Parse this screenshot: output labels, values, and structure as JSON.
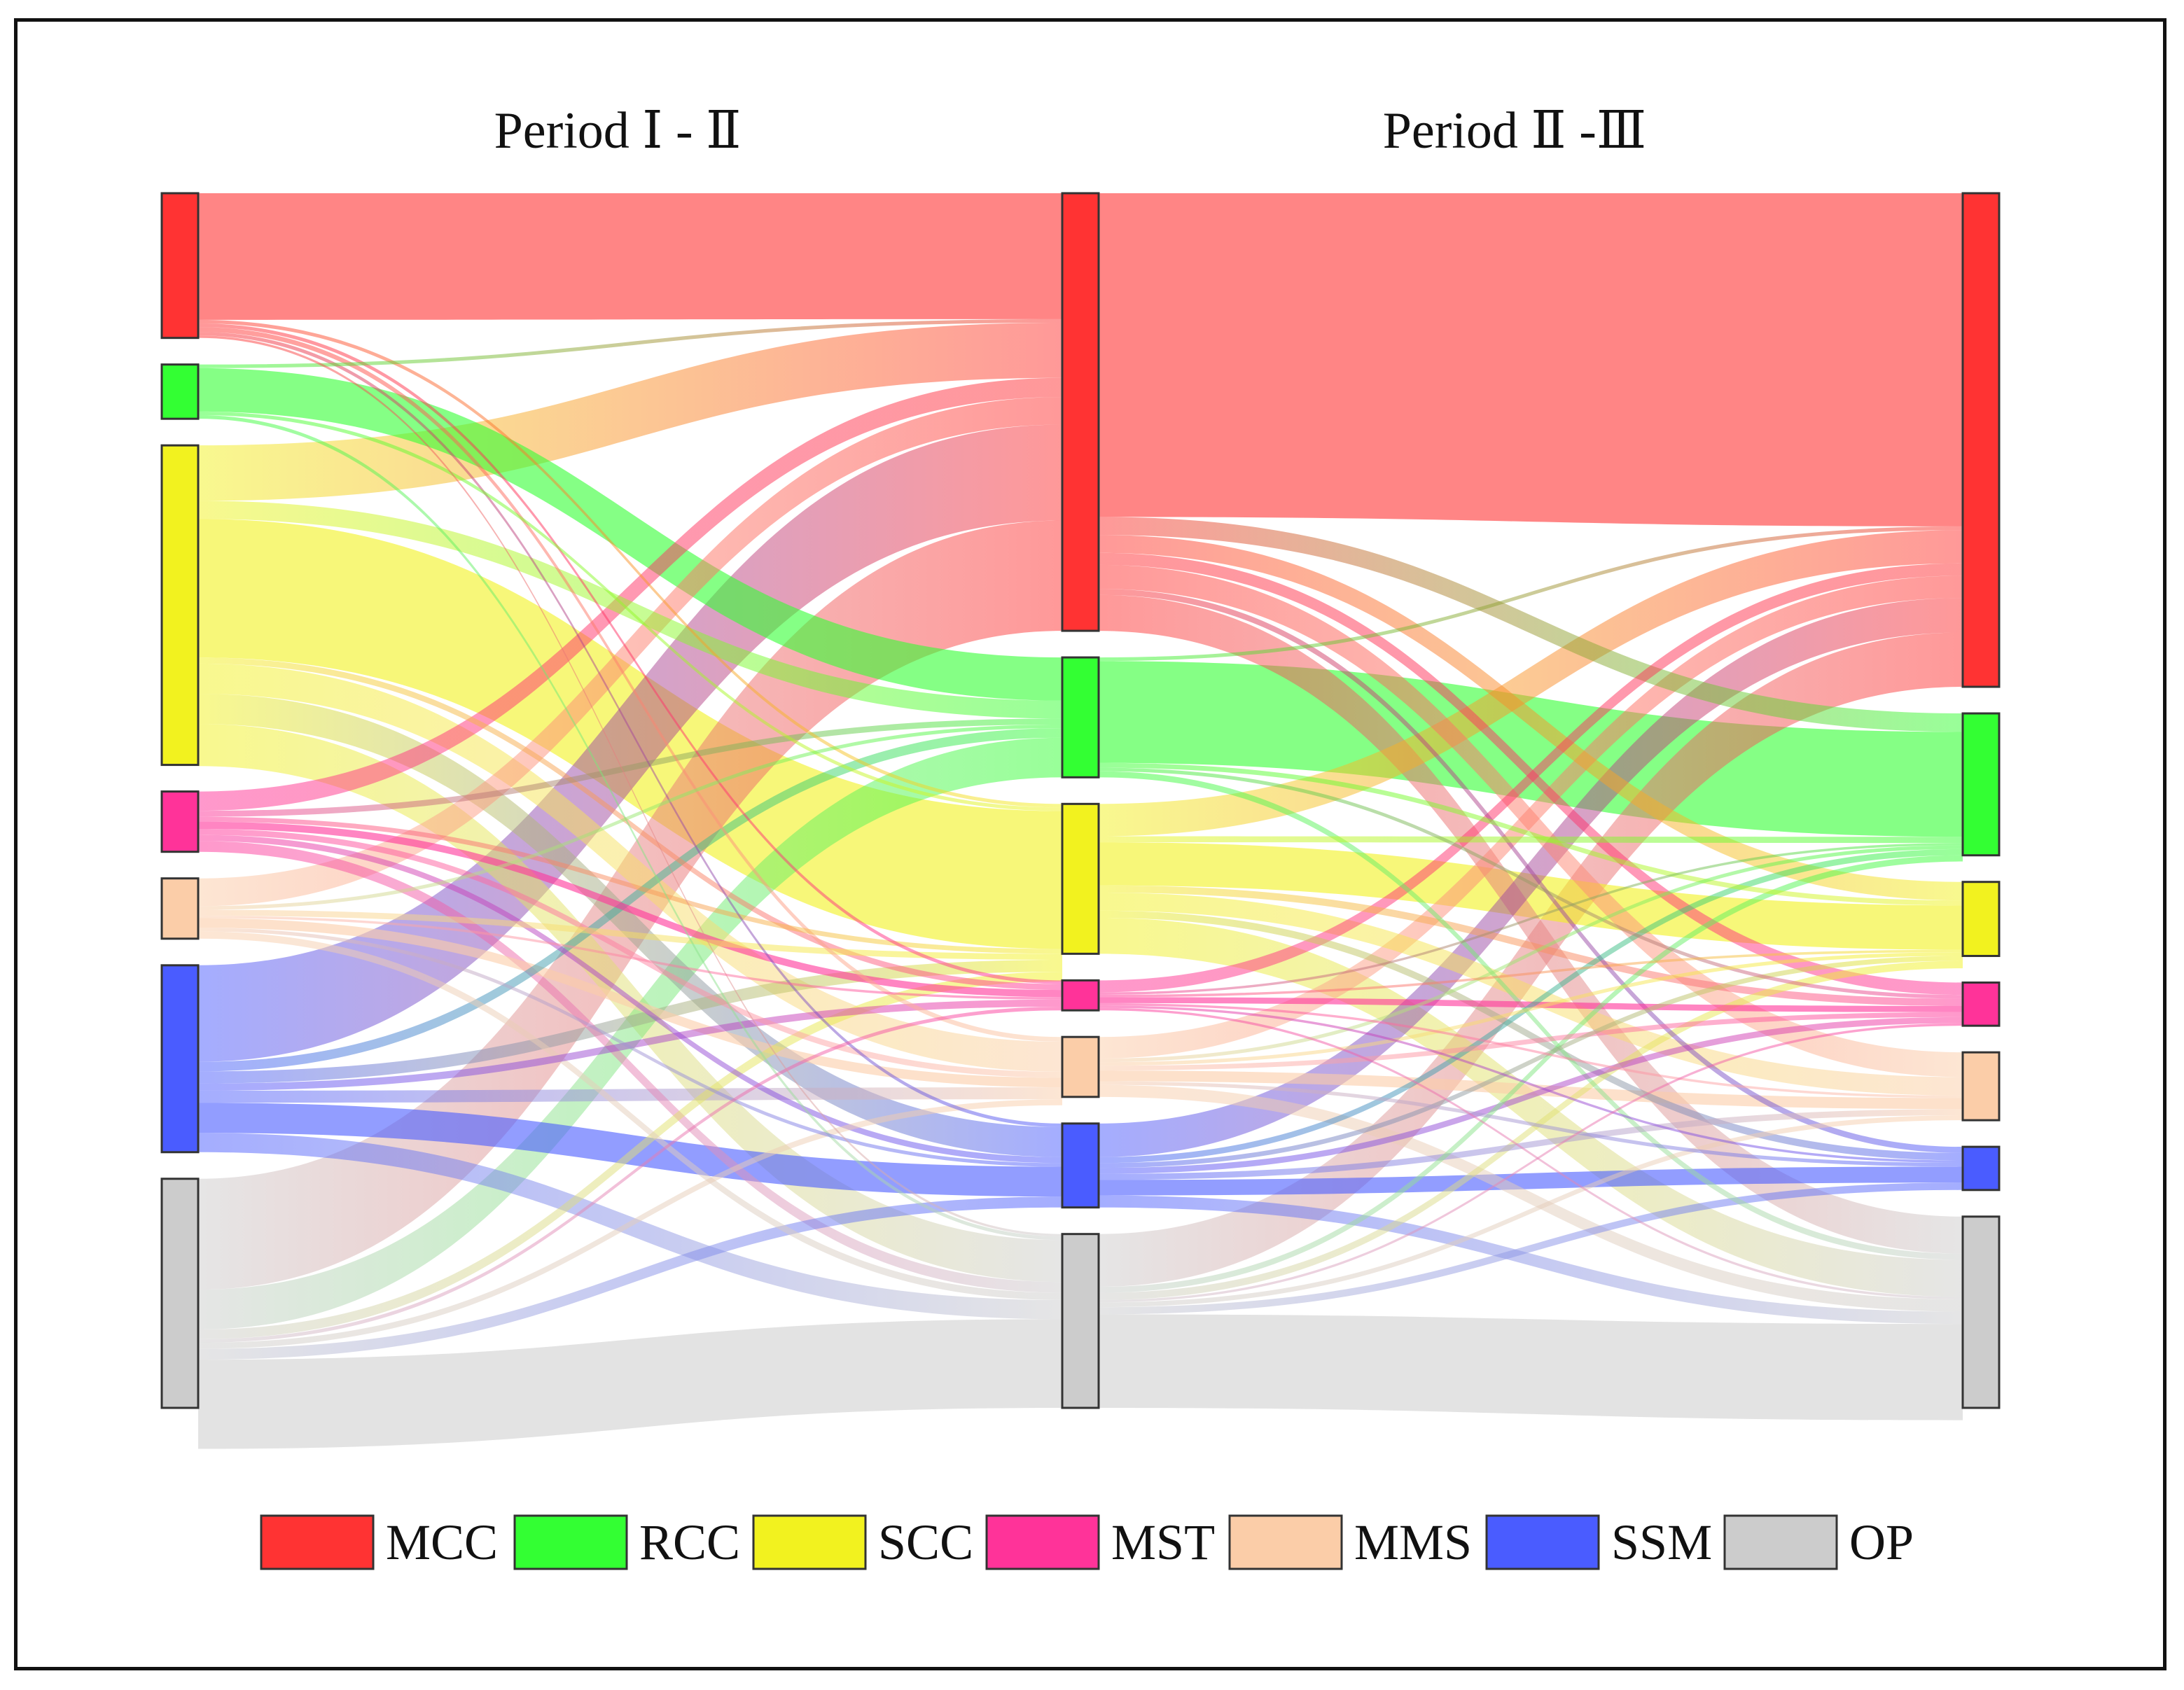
{
  "chart_data": {
    "type": "sankey",
    "unit": "relative flow share (%)",
    "periods": [
      "Period Ⅰ - Ⅱ",
      "Period Ⅱ -Ⅲ"
    ],
    "categories": [
      "MCC",
      "RCC",
      "SCC",
      "MST",
      "MMS",
      "SSM",
      "OP"
    ],
    "colors": {
      "MCC": "#ff3333",
      "RCC": "#33ff33",
      "SCC": "#f2f21f",
      "MST": "#ff3399",
      "MMS": "#fbcda8",
      "SSM": "#4a5cff",
      "OP": "#cccccc"
    },
    "stages": [
      {
        "stage": "Ⅰ",
        "totals": {
          "MCC": 12.0,
          "RCC": 4.5,
          "SCC": 26.5,
          "MST": 5.0,
          "MMS": 5.0,
          "SSM": 15.5,
          "OP": 19.0
        }
      },
      {
        "stage": "Ⅱ",
        "totals": {
          "MCC": 36.5,
          "RCC": 10.0,
          "SCC": 12.5,
          "MST": 2.5,
          "MMS": 5.0,
          "SSM": 7.0,
          "OP": 14.5
        }
      },
      {
        "stage": "Ⅲ",
        "totals": {
          "MCC": 40.0,
          "RCC": 11.5,
          "SCC": 6.0,
          "MST": 3.5,
          "MMS": 5.5,
          "SSM": 3.5,
          "OP": 15.5
        }
      }
    ],
    "flows_I_II": [
      [
        "MCC",
        "MCC",
        10.5
      ],
      [
        "MCC",
        "SCC",
        0.3
      ],
      [
        "MCC",
        "MST",
        0.3
      ],
      [
        "MCC",
        "MMS",
        0.4
      ],
      [
        "MCC",
        "SSM",
        0.3
      ],
      [
        "MCC",
        "OP",
        0.2
      ],
      [
        "RCC",
        "MCC",
        0.3
      ],
      [
        "RCC",
        "RCC",
        3.6
      ],
      [
        "RCC",
        "SCC",
        0.3
      ],
      [
        "RCC",
        "OP",
        0.3
      ],
      [
        "SCC",
        "MCC",
        4.6
      ],
      [
        "SCC",
        "RCC",
        1.5
      ],
      [
        "SCC",
        "SCC",
        11.5
      ],
      [
        "SCC",
        "MST",
        0.5
      ],
      [
        "SCC",
        "MMS",
        2.5
      ],
      [
        "SCC",
        "SSM",
        2.5
      ],
      [
        "SCC",
        "OP",
        3.5
      ],
      [
        "MST",
        "MCC",
        1.6
      ],
      [
        "MST",
        "RCC",
        0.5
      ],
      [
        "MST",
        "SCC",
        0.4
      ],
      [
        "MST",
        "MST",
        0.6
      ],
      [
        "MST",
        "MMS",
        0.5
      ],
      [
        "MST",
        "SSM",
        0.5
      ],
      [
        "MST",
        "OP",
        0.9
      ],
      [
        "MMS",
        "MCC",
        2.3
      ],
      [
        "MMS",
        "RCC",
        0.3
      ],
      [
        "MMS",
        "SCC",
        0.5
      ],
      [
        "MMS",
        "MST",
        0.2
      ],
      [
        "MMS",
        "MMS",
        0.8
      ],
      [
        "MMS",
        "SSM",
        0.3
      ],
      [
        "MMS",
        "OP",
        0.6
      ],
      [
        "SSM",
        "MCC",
        8.0
      ],
      [
        "SSM",
        "RCC",
        0.8
      ],
      [
        "SSM",
        "SCC",
        1.0
      ],
      [
        "SSM",
        "MST",
        0.6
      ],
      [
        "SSM",
        "MMS",
        1.0
      ],
      [
        "SSM",
        "SSM",
        2.5
      ],
      [
        "SSM",
        "OP",
        1.6
      ],
      [
        "OP",
        "MCC",
        9.2
      ],
      [
        "OP",
        "RCC",
        3.3
      ],
      [
        "OP",
        "SCC",
        0.8
      ],
      [
        "OP",
        "MST",
        0.3
      ],
      [
        "OP",
        "MMS",
        0.5
      ],
      [
        "OP",
        "SSM",
        0.9
      ],
      [
        "OP",
        "OP",
        7.4
      ]
    ],
    "flows_II_III": [
      [
        "MCC",
        "MCC",
        27.0
      ],
      [
        "MCC",
        "RCC",
        1.5
      ],
      [
        "MCC",
        "SCC",
        1.5
      ],
      [
        "MCC",
        "MST",
        1.0
      ],
      [
        "MCC",
        "MMS",
        2.0
      ],
      [
        "MCC",
        "SSM",
        0.5
      ],
      [
        "MCC",
        "OP",
        3.0
      ],
      [
        "RCC",
        "MCC",
        0.3
      ],
      [
        "RCC",
        "RCC",
        8.5
      ],
      [
        "RCC",
        "SCC",
        0.4
      ],
      [
        "RCC",
        "MST",
        0.3
      ],
      [
        "RCC",
        "OP",
        0.5
      ],
      [
        "SCC",
        "MCC",
        2.7
      ],
      [
        "SCC",
        "RCC",
        0.5
      ],
      [
        "SCC",
        "SCC",
        3.6
      ],
      [
        "SCC",
        "MST",
        0.6
      ],
      [
        "SCC",
        "MMS",
        1.5
      ],
      [
        "SCC",
        "SSM",
        0.6
      ],
      [
        "SCC",
        "OP",
        3.0
      ],
      [
        "MST",
        "MCC",
        1.0
      ],
      [
        "MST",
        "RCC",
        0.2
      ],
      [
        "MST",
        "SCC",
        0.2
      ],
      [
        "MST",
        "MST",
        0.5
      ],
      [
        "MST",
        "MMS",
        0.2
      ],
      [
        "MST",
        "SSM",
        0.2
      ],
      [
        "MST",
        "OP",
        0.2
      ],
      [
        "MMS",
        "MCC",
        1.8
      ],
      [
        "MMS",
        "RCC",
        0.3
      ],
      [
        "MMS",
        "SCC",
        0.3
      ],
      [
        "MMS",
        "MST",
        0.4
      ],
      [
        "MMS",
        "MMS",
        0.9
      ],
      [
        "MMS",
        "SSM",
        0.3
      ],
      [
        "MMS",
        "OP",
        1.0
      ],
      [
        "SSM",
        "MCC",
        2.8
      ],
      [
        "SSM",
        "RCC",
        0.5
      ],
      [
        "SSM",
        "SCC",
        0.4
      ],
      [
        "SSM",
        "MST",
        0.5
      ],
      [
        "SSM",
        "MMS",
        0.5
      ],
      [
        "SSM",
        "SSM",
        1.3
      ],
      [
        "SSM",
        "OP",
        1.0
      ],
      [
        "OP",
        "MCC",
        4.4
      ],
      [
        "OP",
        "RCC",
        0.5
      ],
      [
        "OP",
        "SCC",
        0.6
      ],
      [
        "OP",
        "MST",
        0.2
      ],
      [
        "OP",
        "MMS",
        0.4
      ],
      [
        "OP",
        "SSM",
        0.6
      ],
      [
        "OP",
        "OP",
        7.8
      ]
    ],
    "legend_position": "bottom-center"
  }
}
